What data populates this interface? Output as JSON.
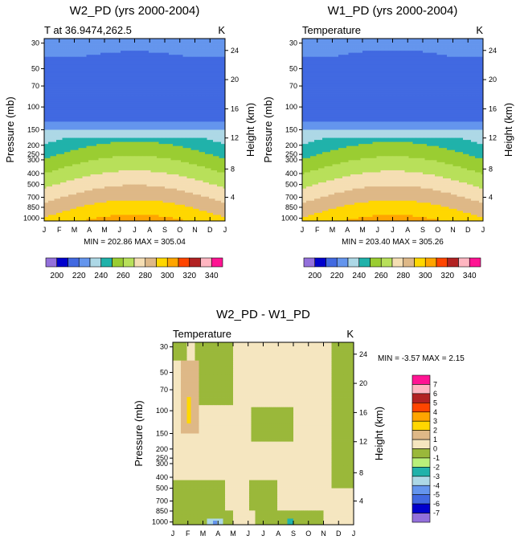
{
  "colors": {
    "background": "#ffffff",
    "abs_palette": [
      "#9370db",
      "#0000cd",
      "#4169e1",
      "#6495ed",
      "#add8e6",
      "#20b2aa",
      "#9acd32",
      "#b8e05a",
      "#f5deb3",
      "#deb887",
      "#ffd700",
      "#ffa500",
      "#ff4500",
      "#b22222",
      "#ffb6c1",
      "#ff1493"
    ],
    "diff_palette": [
      "#9370db",
      "#0000cd",
      "#4169e1",
      "#6495ed",
      "#add8e6",
      "#20b2aa",
      "#b8f07a",
      "#9ab83a",
      "#f5e6c0",
      "#deb887",
      "#ffd700",
      "#ffa500",
      "#ff4500",
      "#b22222",
      "#ffb6c1",
      "#ff1493"
    ]
  },
  "chart_data": [
    {
      "id": "w2",
      "type": "heatmap",
      "title": "W2_PD (yrs 2000-2004)",
      "left_label": "T at 36.9474,262.5",
      "right_label": "K",
      "xlabel": "",
      "ylabel": "Pressure (mb)",
      "y2label": "Height (km)",
      "x_ticks": [
        "J",
        "F",
        "M",
        "A",
        "M",
        "J",
        "J",
        "A",
        "S",
        "O",
        "N",
        "D",
        "J"
      ],
      "pressure_ticks": [
        "30",
        "50",
        "70",
        "100",
        "150",
        "200",
        "250",
        "300",
        "400",
        "500",
        "700",
        "850",
        "1000"
      ],
      "height_ticks": [
        "24",
        "20",
        "16",
        "12",
        "8",
        "4"
      ],
      "stats": "MIN = 202.86 MAX = 305.04",
      "data_min": 202.86,
      "data_max": 305.04,
      "colorbar_ticks": [
        "200",
        "220",
        "240",
        "260",
        "280",
        "300",
        "320",
        "340"
      ],
      "levels": [
        200,
        210,
        220,
        230,
        240,
        250,
        260,
        270,
        280,
        290,
        300,
        310,
        320,
        330,
        340
      ]
    },
    {
      "id": "w1",
      "type": "heatmap",
      "title": "W1_PD (yrs 2000-2004)",
      "left_label": "Temperature",
      "right_label": "K",
      "xlabel": "",
      "ylabel": "Pressure (mb)",
      "y2label": "Height (km)",
      "x_ticks": [
        "J",
        "F",
        "M",
        "A",
        "M",
        "J",
        "J",
        "A",
        "S",
        "O",
        "N",
        "D",
        "J"
      ],
      "pressure_ticks": [
        "30",
        "50",
        "70",
        "100",
        "150",
        "200",
        "250",
        "300",
        "400",
        "500",
        "700",
        "850",
        "1000"
      ],
      "height_ticks": [
        "24",
        "20",
        "16",
        "12",
        "8",
        "4"
      ],
      "stats": "MIN = 203.40 MAX = 305.26",
      "data_min": 203.4,
      "data_max": 305.26,
      "colorbar_ticks": [
        "200",
        "220",
        "240",
        "260",
        "280",
        "300",
        "320",
        "340"
      ],
      "levels": [
        200,
        210,
        220,
        230,
        240,
        250,
        260,
        270,
        280,
        290,
        300,
        310,
        320,
        330,
        340
      ]
    },
    {
      "id": "diff",
      "type": "heatmap",
      "title": "W2_PD - W1_PD",
      "left_label": "Temperature",
      "right_label": "K",
      "xlabel": "",
      "ylabel": "Pressure (mb)",
      "y2label": "Height (km)",
      "x_ticks": [
        "J",
        "F",
        "M",
        "A",
        "M",
        "J",
        "J",
        "A",
        "S",
        "O",
        "N",
        "D",
        "J"
      ],
      "pressure_ticks": [
        "30",
        "50",
        "70",
        "100",
        "150",
        "200",
        "250",
        "300",
        "400",
        "500",
        "700",
        "850",
        "1000"
      ],
      "height_ticks": [
        "24",
        "20",
        "16",
        "12",
        "8",
        "4"
      ],
      "stats": "MIN =  -3.57 MAX =   2.15",
      "data_min": -3.57,
      "data_max": 2.15,
      "colorbar_ticks": [
        "7",
        "6",
        "5",
        "4",
        "3",
        "2",
        "1",
        "0",
        "-1",
        "-2",
        "-3",
        "-4",
        "-5",
        "-6",
        "-7"
      ],
      "levels": [
        -7,
        -6,
        -5,
        -4,
        -3,
        -2,
        -1,
        0,
        1,
        2,
        3,
        4,
        5,
        6,
        7
      ]
    }
  ]
}
